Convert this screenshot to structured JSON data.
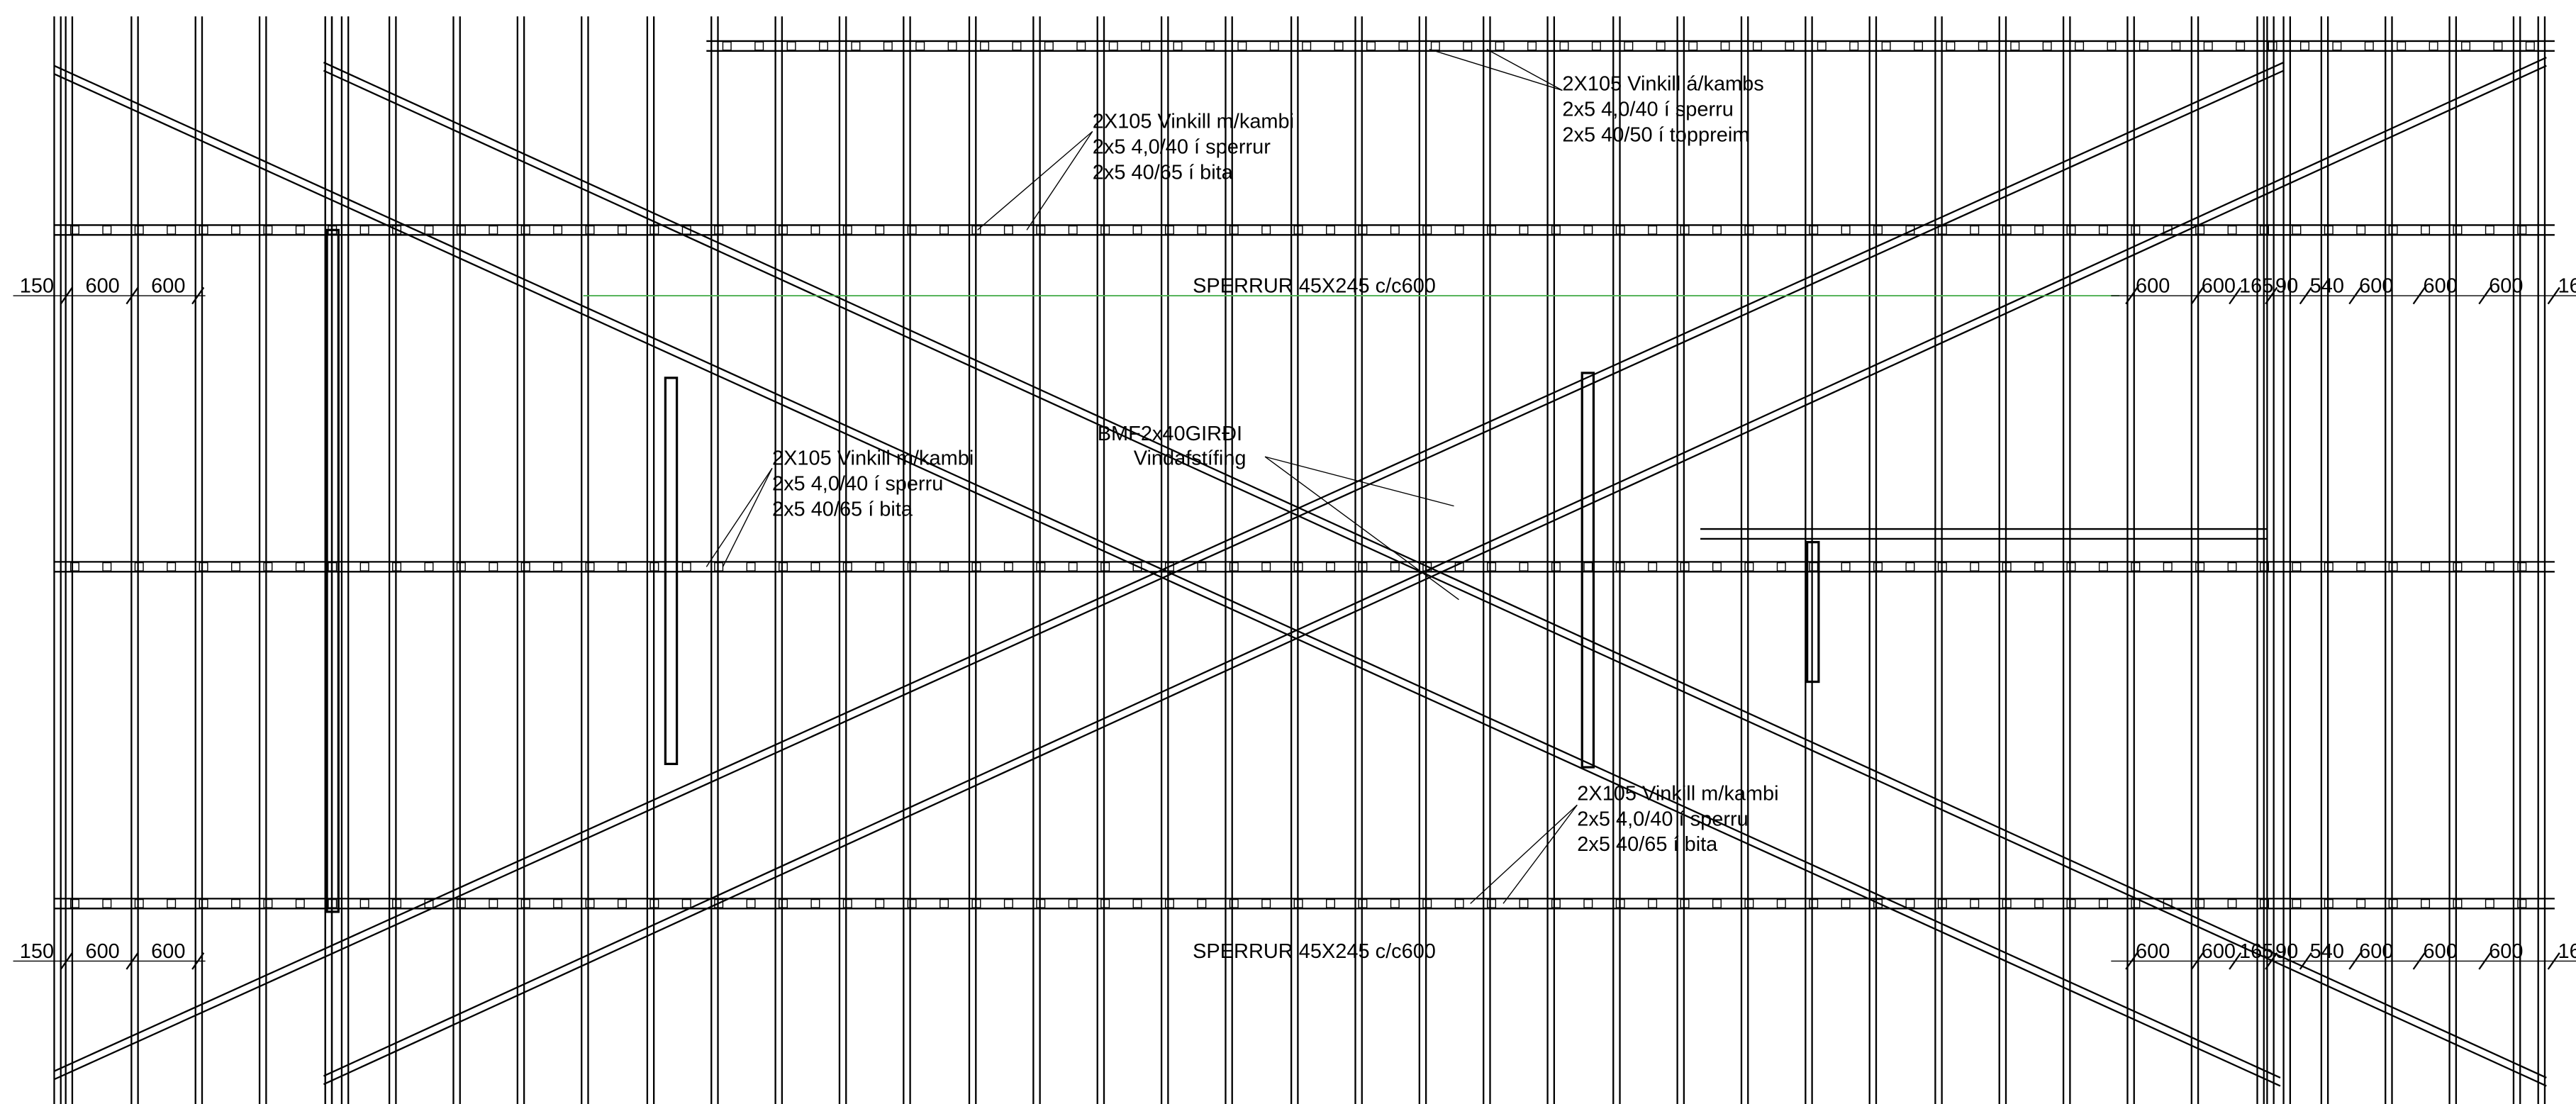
{
  "notes": [
    {
      "lines": [
        "2X105 Vinkill á/kambs",
        "2x5 4,0/40 í sperru",
        "2x5 40/50 í toppreim"
      ]
    },
    {
      "lines": [
        "2X105 Vinkill m/kambi",
        "2x5 4,0/40 í sperrur",
        "2x5 40/65 í bita"
      ]
    },
    {
      "lines": [
        "2X105 Vinkill m/kambi",
        "2x5 4,0/40 í sperru",
        "2x5 40/65 í bita"
      ]
    },
    {
      "lines": [
        "2X105 Vinkill m/kambi",
        "2x5 4,0/40 í sperru",
        "2x5 40/65 í bita"
      ]
    }
  ],
  "bracing": {
    "name": "BMF2x40GIRÐI",
    "label": "Vindafstífing"
  },
  "rafter_labels": [
    "SPERRUR 45X245 c/c600",
    "SPERRUR 45X245 c/c600"
  ],
  "dimensions": {
    "top_left": [
      "150",
      "600",
      "600"
    ],
    "top_right": [
      "600",
      "600",
      "165",
      "90",
      "540",
      "600",
      "600",
      "600",
      "16"
    ],
    "bottom_left": [
      "150",
      "600",
      "600"
    ],
    "bottom_right": [
      "600",
      "600",
      "165",
      "90",
      "540",
      "600",
      "600",
      "600",
      "16"
    ]
  }
}
